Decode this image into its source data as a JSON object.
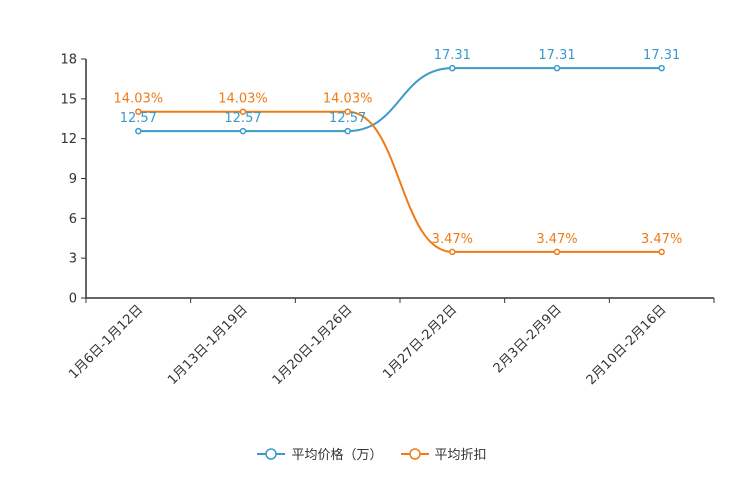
{
  "chart_data": {
    "type": "line",
    "categories": [
      "1月6日-1月12日",
      "1月13日-1月19日",
      "1月20日-1月26日",
      "1月27日-2月2日",
      "2月3日-2月9日",
      "2月10日-2月16日"
    ],
    "ylim": [
      0,
      18
    ],
    "yticks": [
      0,
      3,
      6,
      9,
      12,
      15,
      18
    ],
    "title": "",
    "xlabel": "",
    "ylabel": "",
    "series": [
      {
        "name": "平均价格（万）",
        "color": "#3a9ac9",
        "values": [
          12.57,
          12.57,
          12.57,
          17.31,
          17.31,
          17.31
        ],
        "labels": [
          "12.57",
          "12.57",
          "12.57",
          "17.31",
          "17.31",
          "17.31"
        ]
      },
      {
        "name": "平均折扣",
        "color": "#f07b16",
        "values": [
          14.03,
          14.03,
          14.03,
          3.47,
          3.47,
          3.47
        ],
        "labels": [
          "14.03%",
          "14.03%",
          "14.03%",
          "3.47%",
          "3.47%",
          "3.47%"
        ]
      }
    ],
    "legend_position": "bottom-center"
  }
}
